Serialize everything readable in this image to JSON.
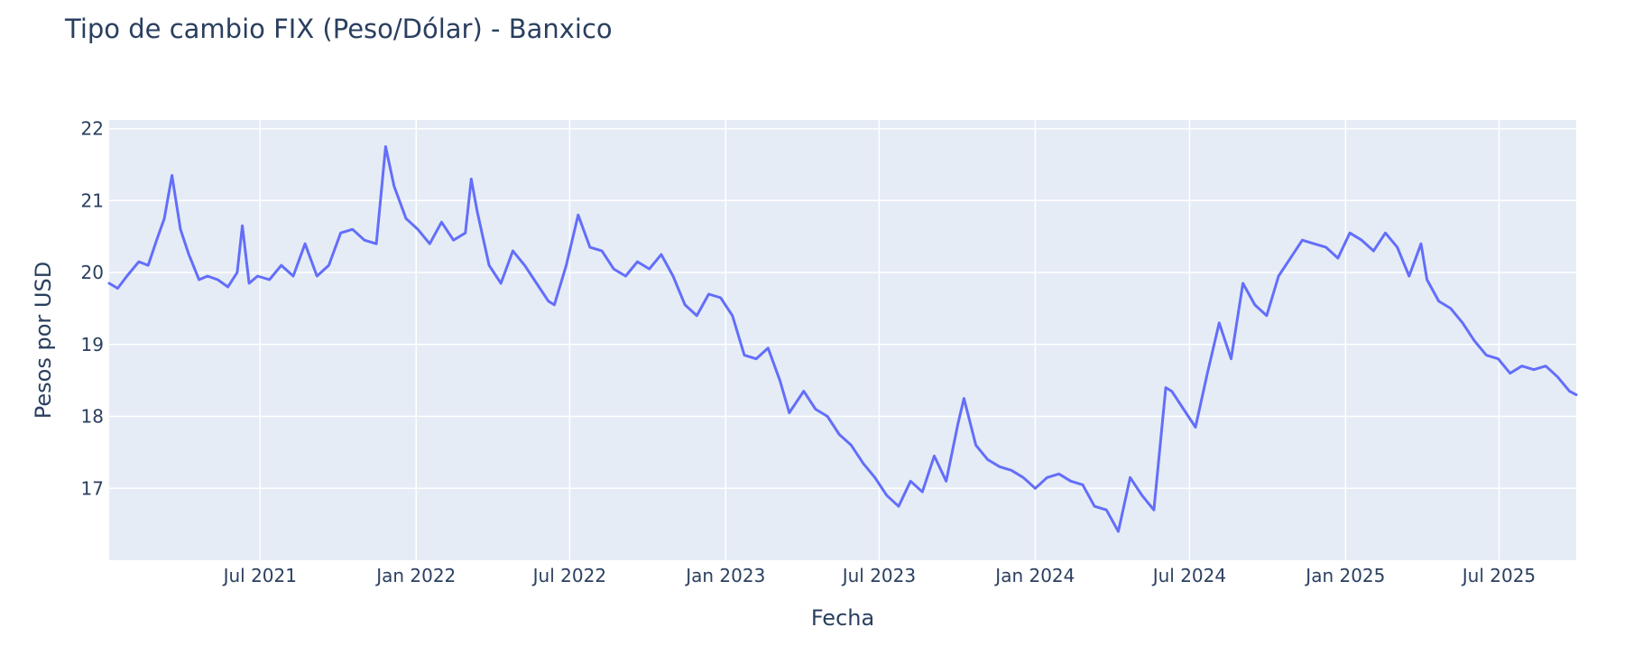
{
  "chart_data": {
    "type": "line",
    "title": "Tipo de cambio FIX (Peso/Dólar) - Banxico",
    "xlabel": "Fecha",
    "ylabel": "Pesos por USD",
    "ylim": [
      16.0,
      22.12
    ],
    "xlim": [
      "2021-01-04",
      "2025-09-30"
    ],
    "grid": true,
    "legend": "none",
    "colors": {
      "line": "#636efa",
      "plot_bg": "#e5ecf6",
      "text": "#2a3f5f",
      "grid": "#ffffff"
    },
    "y_ticks": [
      17,
      18,
      19,
      20,
      21,
      22
    ],
    "x_ticks": [
      {
        "date": "2021-07-01",
        "label": "Jul 2021"
      },
      {
        "date": "2022-01-01",
        "label": "Jan 2022"
      },
      {
        "date": "2022-07-01",
        "label": "Jul 2022"
      },
      {
        "date": "2023-01-01",
        "label": "Jan 2023"
      },
      {
        "date": "2023-07-01",
        "label": "Jul 2023"
      },
      {
        "date": "2024-01-01",
        "label": "Jan 2024"
      },
      {
        "date": "2024-07-01",
        "label": "Jul 2024"
      },
      {
        "date": "2025-01-01",
        "label": "Jan 2025"
      },
      {
        "date": "2025-07-01",
        "label": "Jul 2025"
      }
    ],
    "series": [
      {
        "x": [
          "2021-01-04",
          "2021-01-14",
          "2021-01-25",
          "2021-02-08",
          "2021-02-19",
          "2021-03-01",
          "2021-03-10",
          "2021-03-19",
          "2021-03-29",
          "2021-04-08",
          "2021-04-20",
          "2021-04-30",
          "2021-05-12",
          "2021-05-24",
          "2021-06-04",
          "2021-06-10",
          "2021-06-18",
          "2021-06-28",
          "2021-07-12",
          "2021-07-26",
          "2021-08-09",
          "2021-08-23",
          "2021-09-06",
          "2021-09-20",
          "2021-10-04",
          "2021-10-18",
          "2021-11-01",
          "2021-11-15",
          "2021-11-26",
          "2021-12-06",
          "2021-12-20",
          "2022-01-03",
          "2022-01-17",
          "2022-01-31",
          "2022-02-14",
          "2022-02-28",
          "2022-03-07",
          "2022-03-14",
          "2022-03-28",
          "2022-04-11",
          "2022-04-25",
          "2022-05-09",
          "2022-05-23",
          "2022-06-06",
          "2022-06-13",
          "2022-06-27",
          "2022-07-11",
          "2022-07-25",
          "2022-08-08",
          "2022-08-22",
          "2022-09-05",
          "2022-09-19",
          "2022-10-03",
          "2022-10-17",
          "2022-10-31",
          "2022-11-14",
          "2022-11-28",
          "2022-12-12",
          "2022-12-26",
          "2023-01-09",
          "2023-01-23",
          "2023-02-06",
          "2023-02-20",
          "2023-03-06",
          "2023-03-17",
          "2023-04-03",
          "2023-04-17",
          "2023-05-01",
          "2023-05-15",
          "2023-05-29",
          "2023-06-12",
          "2023-06-26",
          "2023-07-10",
          "2023-07-24",
          "2023-08-07",
          "2023-08-21",
          "2023-09-04",
          "2023-09-18",
          "2023-10-02",
          "2023-10-09",
          "2023-10-23",
          "2023-11-06",
          "2023-11-20",
          "2023-12-04",
          "2023-12-18",
          "2024-01-01",
          "2024-01-15",
          "2024-01-29",
          "2024-02-12",
          "2024-02-26",
          "2024-03-11",
          "2024-03-25",
          "2024-04-08",
          "2024-04-22",
          "2024-05-06",
          "2024-05-20",
          "2024-06-03",
          "2024-06-10",
          "2024-06-24",
          "2024-07-08",
          "2024-07-22",
          "2024-08-05",
          "2024-08-19",
          "2024-09-02",
          "2024-09-16",
          "2024-09-30",
          "2024-10-14",
          "2024-10-28",
          "2024-11-11",
          "2024-11-25",
          "2024-12-09",
          "2024-12-23",
          "2025-01-06",
          "2025-01-20",
          "2025-02-03",
          "2025-02-17",
          "2025-03-03",
          "2025-03-17",
          "2025-03-31",
          "2025-04-07",
          "2025-04-21",
          "2025-05-05",
          "2025-05-19",
          "2025-06-02",
          "2025-06-16",
          "2025-06-30",
          "2025-07-14",
          "2025-07-28",
          "2025-08-11",
          "2025-08-25",
          "2025-09-08",
          "2025-09-22",
          "2025-09-30"
        ],
        "values": [
          19.85,
          19.78,
          19.95,
          20.15,
          20.1,
          20.45,
          20.75,
          21.35,
          20.6,
          20.25,
          19.9,
          19.95,
          19.9,
          19.8,
          20.0,
          20.65,
          19.85,
          19.95,
          19.9,
          20.1,
          19.95,
          20.4,
          19.95,
          20.1,
          20.55,
          20.6,
          20.45,
          20.4,
          21.75,
          21.2,
          20.75,
          20.6,
          20.4,
          20.7,
          20.45,
          20.55,
          21.3,
          20.85,
          20.1,
          19.85,
          20.3,
          20.1,
          19.85,
          19.6,
          19.55,
          20.1,
          20.8,
          20.35,
          20.3,
          20.05,
          19.95,
          20.15,
          20.05,
          20.25,
          19.95,
          19.55,
          19.4,
          19.7,
          19.65,
          19.4,
          18.85,
          18.8,
          18.95,
          18.5,
          18.05,
          18.35,
          18.1,
          18.0,
          17.75,
          17.6,
          17.35,
          17.15,
          16.9,
          16.75,
          17.1,
          16.95,
          17.45,
          17.1,
          17.9,
          18.25,
          17.6,
          17.4,
          17.3,
          17.25,
          17.15,
          17.0,
          17.15,
          17.2,
          17.1,
          17.05,
          16.75,
          16.7,
          16.4,
          17.15,
          16.9,
          16.7,
          18.4,
          18.35,
          18.1,
          17.85,
          18.6,
          19.3,
          18.8,
          19.85,
          19.55,
          19.4,
          19.95,
          20.2,
          20.45,
          20.4,
          20.35,
          20.2,
          20.55,
          20.45,
          20.3,
          20.55,
          20.35,
          19.95,
          20.4,
          19.9,
          19.6,
          19.5,
          19.3,
          19.05,
          18.85,
          18.8,
          18.6,
          18.7,
          18.65,
          18.7,
          18.55,
          18.35,
          18.3
        ]
      }
    ]
  }
}
